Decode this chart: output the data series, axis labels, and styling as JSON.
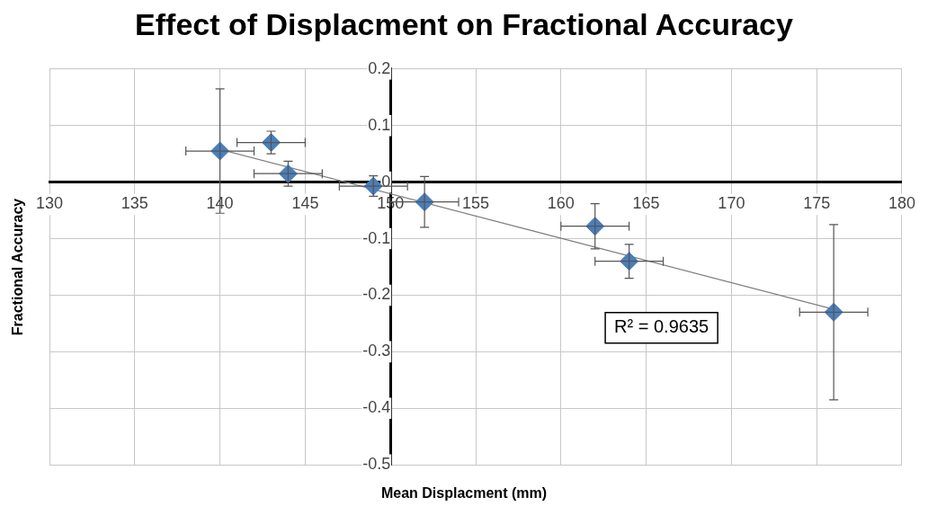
{
  "chart_data": {
    "type": "scatter",
    "title": "Effect of Displacment on Fractional Accuracy",
    "xlabel": "Mean Displacment (mm)",
    "ylabel": "Fractional Accuracy",
    "xlim": [
      130,
      180
    ],
    "xticks": [
      130,
      135,
      140,
      145,
      150,
      155,
      160,
      165,
      170,
      175,
      180
    ],
    "ylim": [
      -0.5,
      0.2
    ],
    "yticks": [
      -0.5,
      -0.4,
      -0.3,
      -0.2,
      -0.1,
      0,
      0.1,
      0.2
    ],
    "grid": true,
    "legend": false,
    "series": [
      {
        "marker": "diamond",
        "color": "#4a7ebb",
        "x": [
          140,
          143,
          144,
          149,
          152,
          162,
          164,
          176
        ],
        "values": [
          0.055,
          0.07,
          0.015,
          -0.007,
          -0.035,
          -0.078,
          -0.14,
          -0.23
        ],
        "errors": [
          0.11,
          0.02,
          0.022,
          0.018,
          0.045,
          0.04,
          0.03,
          0.155
        ],
        "xerrors": [
          2,
          2,
          2,
          2,
          2,
          2,
          2,
          2
        ]
      },
      {
        "type": "line",
        "color": "#7f7f7f",
        "x": [
          140,
          176
        ],
        "values": [
          0.058,
          -0.225
        ]
      }
    ],
    "annotations": [
      "R² = 0.9635"
    ]
  }
}
